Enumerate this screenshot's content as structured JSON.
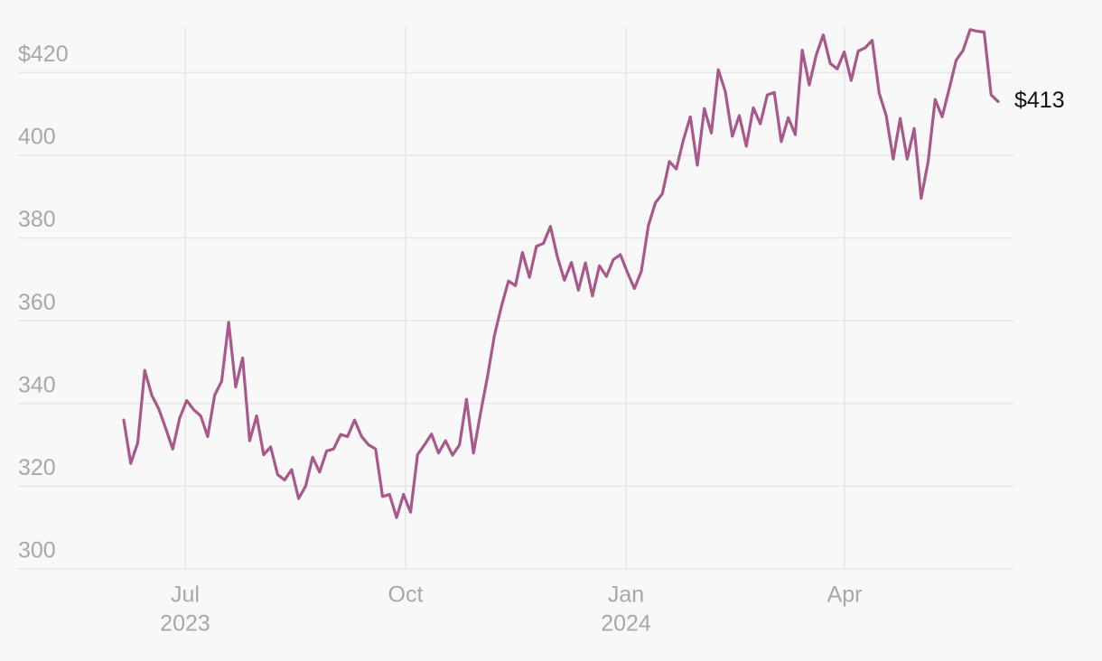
{
  "chart_data": {
    "type": "line",
    "xlim": [
      0,
      125
    ],
    "xticks": [
      {
        "value": 8.78,
        "label": "Jul"
      },
      {
        "value": 40.29,
        "label": "Oct"
      },
      {
        "value": 71.8,
        "label": "Jan"
      },
      {
        "value": 103.05,
        "label": "Apr"
      }
    ],
    "x_year_labels": [
      {
        "value": 8.78,
        "label": "2023"
      },
      {
        "value": 71.8,
        "label": "2024"
      }
    ],
    "ylim": [
      300,
      431
    ],
    "yticks": [
      300,
      320,
      340,
      360,
      380,
      400,
      {
        "value": 420,
        "label": "$420"
      }
    ],
    "grid": true,
    "series": [
      {
        "color": "#a8588a",
        "end_label": "$413",
        "values": [
          336,
          325.5,
          330.5,
          348,
          342,
          338.7,
          334,
          329,
          336.5,
          340.7,
          338.5,
          337,
          332,
          342,
          345.4,
          359.6,
          344,
          351,
          331,
          337,
          327.6,
          329.5,
          322.8,
          321.5,
          324,
          317,
          320,
          327,
          323.4,
          328.5,
          329,
          332.5,
          332,
          336,
          332,
          330,
          329,
          317.5,
          318,
          312.4,
          318,
          313.7,
          327.6,
          330,
          332.6,
          328,
          331,
          327.5,
          330,
          341,
          328,
          337.6,
          346.5,
          356.5,
          363.5,
          369.6,
          368.5,
          376.5,
          370.5,
          378,
          378.7,
          382.8,
          375.4,
          369.8,
          374.1,
          367.4,
          374,
          366,
          373.3,
          370.7,
          374.8,
          376,
          371.7,
          367.8,
          372,
          383,
          388.5,
          390.7,
          398.5,
          396.7,
          403.7,
          409.3,
          397.6,
          411.3,
          405.4,
          420.7,
          415.4,
          404.6,
          409.6,
          402.2,
          411.5,
          407.6,
          414.6,
          415.2,
          403.3,
          409.1,
          405,
          425.4,
          417,
          424.3,
          429.1,
          422.2,
          420.9,
          425,
          418.1,
          425.2,
          426,
          427.8,
          415,
          409.6,
          399.1,
          408.9,
          399.1,
          406.5,
          389.6,
          398.5,
          413.5,
          409.3,
          416,
          423,
          425.4,
          430.4,
          430,
          429.8,
          414.6,
          413
        ]
      }
    ]
  }
}
